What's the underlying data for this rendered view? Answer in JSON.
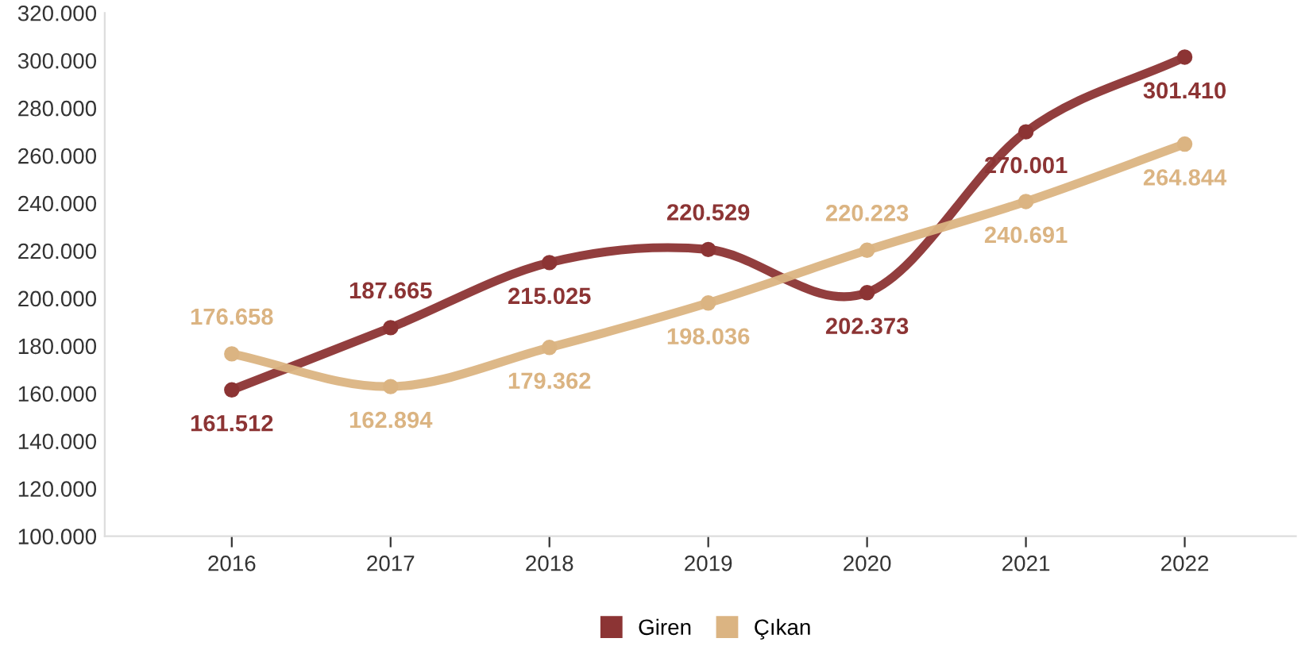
{
  "chart_data": {
    "type": "line",
    "categories": [
      "2016",
      "2017",
      "2018",
      "2019",
      "2020",
      "2021",
      "2022"
    ],
    "series": [
      {
        "name": "Giren",
        "color": "#8c3434",
        "values": [
          161512,
          187665,
          215025,
          220529,
          202373,
          270001,
          301410
        ],
        "value_labels": [
          "161.512",
          "187.665",
          "215.025",
          "220.529",
          "202.373",
          "270.001",
          "301.410"
        ]
      },
      {
        "name": "Çıkan",
        "color": "#dbb482",
        "values": [
          176658,
          162894,
          179362,
          198036,
          220223,
          240691,
          264844
        ],
        "value_labels": [
          "176.658",
          "162.894",
          "179.362",
          "198.036",
          "220.223",
          "240.691",
          "264.844"
        ]
      }
    ],
    "ylim": [
      100000,
      320000
    ],
    "yticks": [
      {
        "value": 100000,
        "label": "100.000"
      },
      {
        "value": 120000,
        "label": "120.000"
      },
      {
        "value": 140000,
        "label": "140.000"
      },
      {
        "value": 160000,
        "label": "160.000"
      },
      {
        "value": 180000,
        "label": "180.000"
      },
      {
        "value": 200000,
        "label": "200.000"
      },
      {
        "value": 220000,
        "label": "220.000"
      },
      {
        "value": 240000,
        "label": "240.000"
      },
      {
        "value": 260000,
        "label": "260.000"
      },
      {
        "value": 280000,
        "label": "280.000"
      },
      {
        "value": 300000,
        "label": "300.000"
      },
      {
        "value": 320000,
        "label": "320.000"
      }
    ],
    "grid": false,
    "legend": "bottom",
    "marker": "circle",
    "line_style": "solid"
  }
}
